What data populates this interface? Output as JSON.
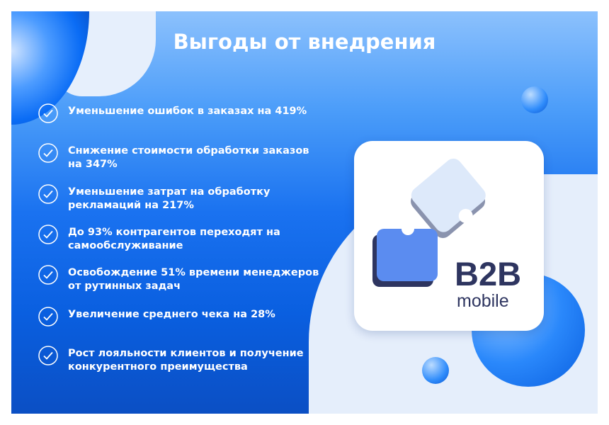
{
  "title": "Выгоды от внедрения",
  "benefits": [
    "Уменьшение ошибок в заказах на 419%",
    "Снижение стоимости обработки заказов на 347%",
    "Уменьшение затрат на обработку рекламаций на 217%",
    "До 93% контрагентов переходят на самообслуживание",
    "Освобождение 51% времени менеджеров от рутинных задач",
    "Увеличение среднего чека на 28%",
    "Рост лояльности клиентов и получение конкурентного преимущества"
  ],
  "logo": {
    "line1": "B2B",
    "line2": "mobile"
  },
  "colors": {
    "primary": "#0a6cf5",
    "logo_text": "#2e3560"
  }
}
